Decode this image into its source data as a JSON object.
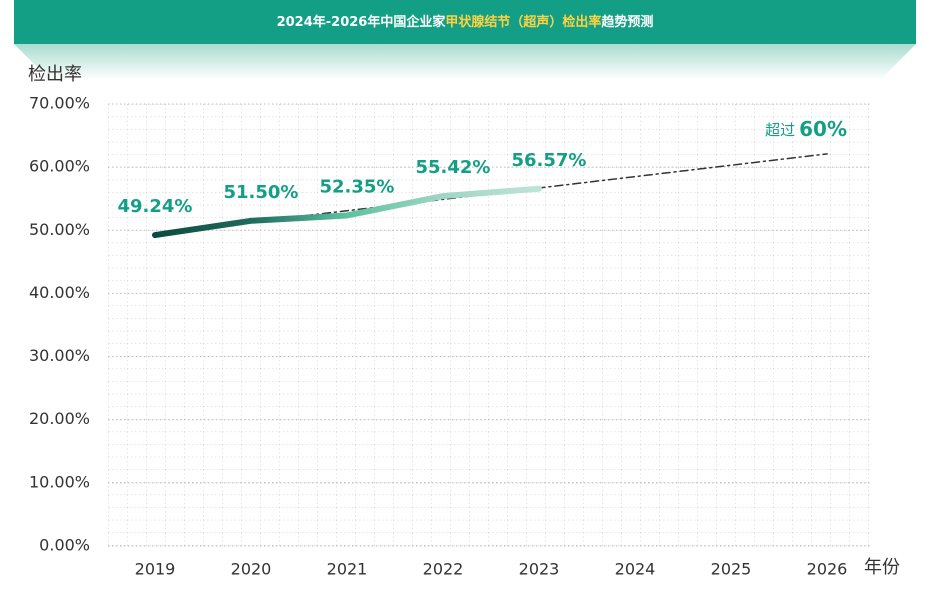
{
  "chart_data": {
    "type": "line",
    "title_parts": [
      "2024年-2026年中国企业家",
      "甲状腺结节（超声）检出率",
      "趋势预测"
    ],
    "title_colors": [
      "#ffffff",
      "#ffd23f",
      "#ffffff"
    ],
    "y_label": "检出率",
    "x_label": "年份",
    "categories": [
      "2019",
      "2020",
      "2021",
      "2022",
      "2023",
      "2024",
      "2025",
      "2026"
    ],
    "series": [
      {
        "name": "检出率",
        "colors": [
          "#0b4a40",
          "#1f6b5c",
          "#5cc2a0",
          "#9fd6c5",
          "#bfe3d8"
        ],
        "values": [
          49.24,
          51.5,
          52.35,
          55.42,
          56.57,
          null,
          null,
          null
        ],
        "value_labels": [
          "49.24%",
          "51.50%",
          "52.35%",
          "55.42%",
          "56.57%",
          null,
          null,
          null
        ]
      },
      {
        "name": "趋势",
        "color": "#333333",
        "dashed": true,
        "values": [
          null,
          51.3,
          53.1,
          54.9,
          56.7,
          58.5,
          60.3,
          62.1
        ]
      }
    ],
    "annotation": {
      "prefix": "超过",
      "text": "60%"
    },
    "label_color": "#139f86",
    "ylim": [
      0,
      70
    ],
    "yticks": [
      {
        "value": 0,
        "label": "0.00%"
      },
      {
        "value": 10,
        "label": "10.00%"
      },
      {
        "value": 20,
        "label": "20.00%"
      },
      {
        "value": 30,
        "label": "30.00%"
      },
      {
        "value": 40,
        "label": "40.00%"
      },
      {
        "value": 50,
        "label": "50.00%"
      },
      {
        "value": 60,
        "label": "60.00%"
      },
      {
        "value": 70,
        "label": "70.00%"
      }
    ],
    "grid": true
  }
}
